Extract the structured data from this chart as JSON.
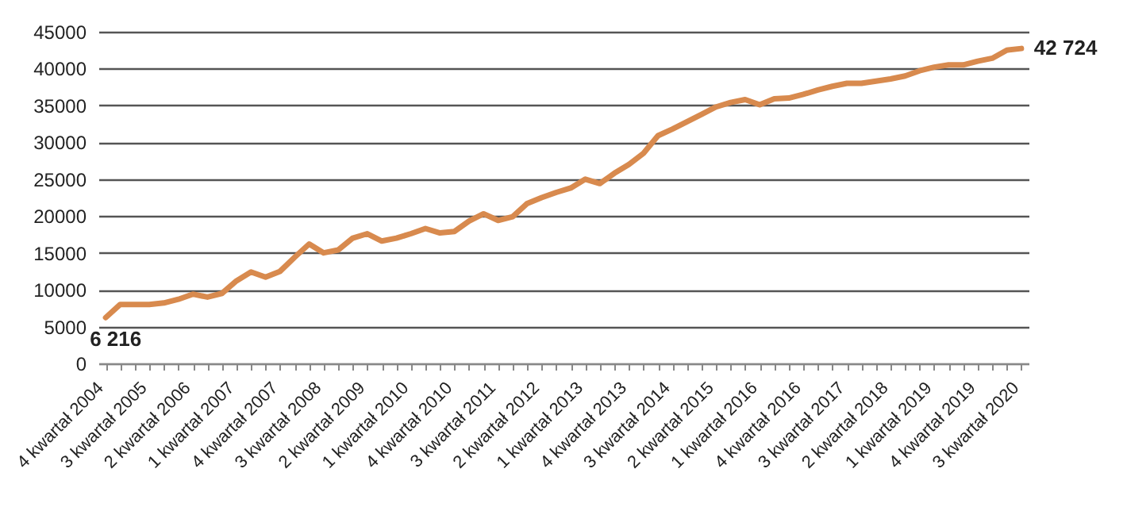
{
  "chart_data": {
    "type": "line",
    "categories": [
      "4 kwartał 2004",
      null,
      null,
      "3 kwartał 2005",
      null,
      null,
      "2 kwartał 2006",
      null,
      null,
      "1 kwartał 2007",
      null,
      null,
      "4 kwartał 2007",
      null,
      null,
      "3 kwartał 2008",
      null,
      null,
      "2 kwartał 2009",
      null,
      null,
      "1 kwartał 2010",
      null,
      null,
      "4 kwartał 2010",
      null,
      null,
      "3 kwartał 2011",
      null,
      null,
      "2 kwartał 2012",
      null,
      null,
      "1 kwartał 2013",
      null,
      null,
      "4 kwartał 2013",
      null,
      null,
      "3 kwartał 2014",
      null,
      null,
      "2 kwartał 2015",
      null,
      null,
      "1 kwartał 2016",
      null,
      null,
      "4 kwartał 2016",
      null,
      null,
      "3 kwartał 2017",
      null,
      null,
      "2 kwartał 2018",
      null,
      null,
      "1 kwartał 2019",
      null,
      null,
      "4 kwartał 2019",
      null,
      null,
      "3 kwartał 2020"
    ],
    "series": [
      {
        "color": "#d88a4e",
        "values": [
          6216,
          8000,
          8000,
          8000,
          8200,
          8700,
          9400,
          9000,
          9500,
          11200,
          12400,
          11700,
          12500,
          14400,
          16200,
          15000,
          15400,
          17000,
          17600,
          16600,
          17000,
          17600,
          18300,
          17700,
          17900,
          19300,
          20300,
          19400,
          19900,
          21700,
          22500,
          23200,
          23800,
          25000,
          24400,
          25800,
          27000,
          28500,
          30900,
          31800,
          32800,
          33800,
          34800,
          35400,
          35800,
          35100,
          35900,
          36000,
          36500,
          37100,
          37600,
          38000,
          38000,
          38300,
          38600,
          39000,
          39700,
          40200,
          40500,
          40500,
          41000,
          41400,
          42500,
          42724
        ],
        "value_labels": [
          "6 216",
          null,
          null,
          null,
          null,
          null,
          null,
          null,
          null,
          null,
          null,
          null,
          null,
          null,
          null,
          null,
          null,
          null,
          null,
          null,
          null,
          null,
          null,
          null,
          null,
          null,
          null,
          null,
          null,
          null,
          null,
          null,
          null,
          null,
          null,
          null,
          null,
          null,
          null,
          null,
          null,
          null,
          null,
          null,
          null,
          null,
          null,
          null,
          null,
          null,
          null,
          null,
          null,
          null,
          null,
          null,
          null,
          null,
          null,
          null,
          null,
          null,
          null,
          "42 724"
        ]
      }
    ],
    "ylim": [
      0,
      45000
    ],
    "yticks": [
      0,
      5000,
      10000,
      15000,
      20000,
      25000,
      30000,
      35000,
      40000,
      45000
    ],
    "grid": "y",
    "legend": false,
    "marker": "none",
    "line_style": "solid"
  }
}
